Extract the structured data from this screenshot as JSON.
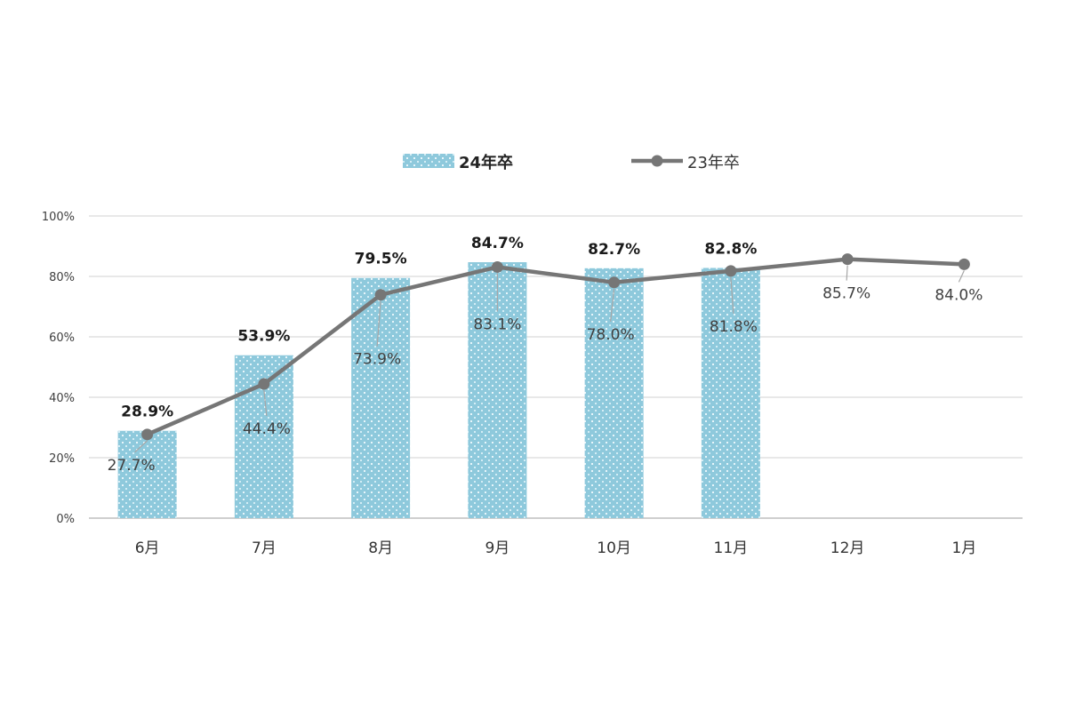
{
  "chart_data": {
    "type": "bar",
    "title": "",
    "xlabel": "",
    "ylabel": "",
    "categories": [
      "6月",
      "7月",
      "8月",
      "9月",
      "10月",
      "11月",
      "12月",
      "1月"
    ],
    "ylim": [
      0,
      100
    ],
    "yticks": [
      "0%",
      "20%",
      "40%",
      "60%",
      "80%",
      "100%"
    ],
    "grid": true,
    "legend_position": "top-center",
    "series": [
      {
        "name": "24年卒",
        "kind": "bar",
        "color": "#8ec9dc",
        "values": [
          28.9,
          53.9,
          79.5,
          84.7,
          82.7,
          82.8,
          null,
          null
        ],
        "labels": [
          "28.9%",
          "53.9%",
          "79.5%",
          "84.7%",
          "82.7%",
          "82.8%",
          "",
          ""
        ]
      },
      {
        "name": "23年卒",
        "kind": "line",
        "color": "#767676",
        "values": [
          27.7,
          44.4,
          73.9,
          83.1,
          78.0,
          81.8,
          85.7,
          84.0
        ],
        "labels": [
          "27.7%",
          "44.4%",
          "73.9%",
          "83.1%",
          "78.0%",
          "81.8%",
          "85.7%",
          "84.0%"
        ]
      }
    ]
  }
}
